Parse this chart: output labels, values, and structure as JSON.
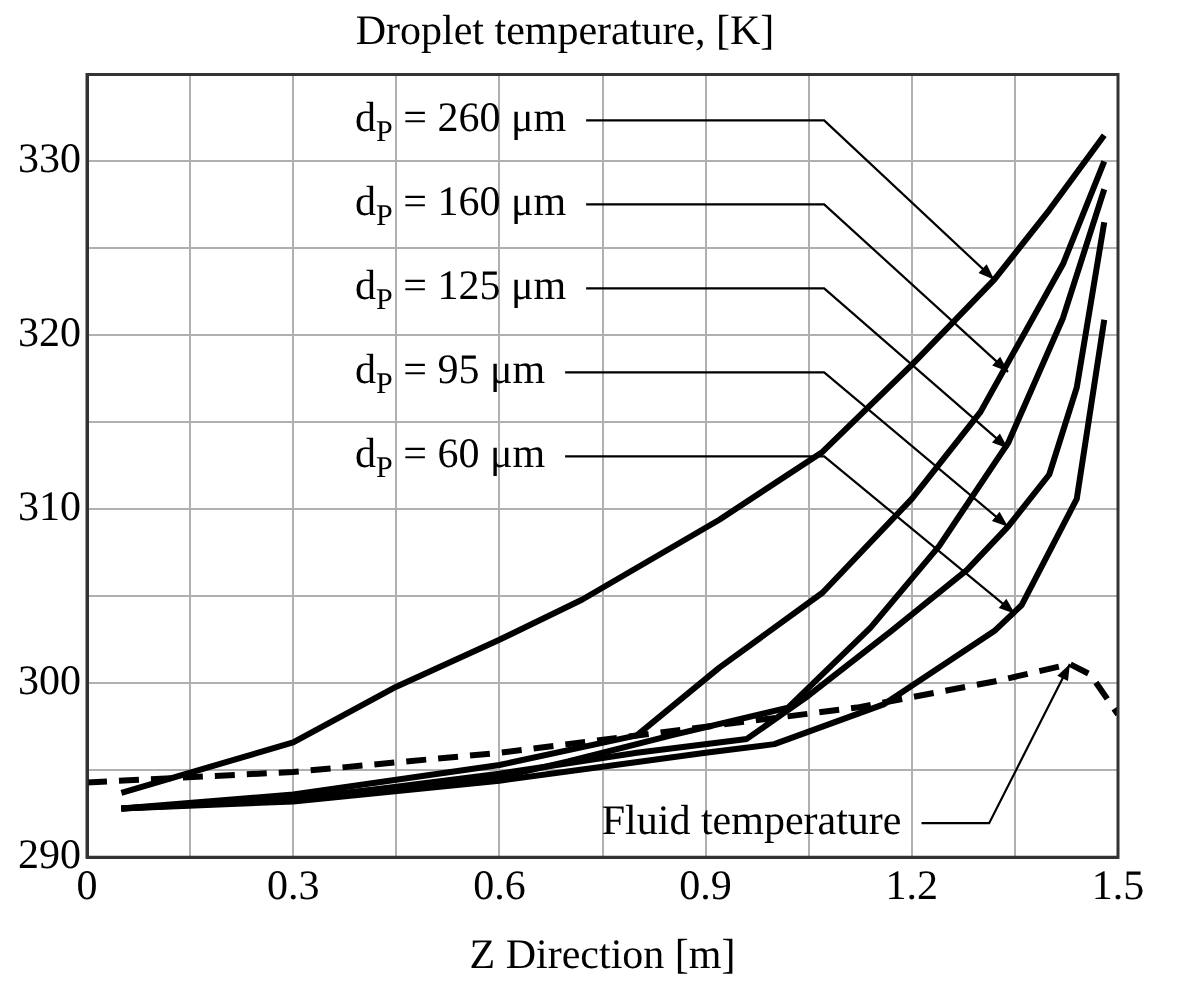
{
  "chart_data": {
    "type": "line",
    "title": "Droplet temperature, [K]",
    "xlabel": "Z Direction [m]",
    "xlim": [
      0,
      1.5
    ],
    "ylim": [
      290,
      335
    ],
    "xticks": [
      0,
      {
        "value": 0.15,
        "label": null
      },
      0.3,
      {
        "value": 0.45,
        "label": null
      },
      0.6,
      {
        "value": 0.75,
        "label": null
      },
      0.9,
      {
        "value": 1.05,
        "label": null
      },
      1.2,
      {
        "value": 1.35,
        "label": null
      },
      1.5
    ],
    "yticks": [
      290,
      {
        "value": 295,
        "label": null
      },
      300,
      {
        "value": 305,
        "label": null
      },
      310,
      {
        "value": 315,
        "label": null
      },
      320,
      {
        "value": 325,
        "label": null
      },
      330
    ],
    "grid": true,
    "legend": false,
    "marker": "none",
    "series": [
      {
        "color": "#000000",
        "line_style": "solid",
        "x": [
          0.05,
          0.3,
          0.45,
          0.6,
          0.72,
          0.92,
          1.07,
          1.2,
          1.32,
          1.4,
          1.48
        ],
        "values": [
          293.7,
          296.6,
          299.8,
          302.5,
          304.8,
          309.4,
          313.3,
          318.3,
          323.2,
          327.2,
          331.5
        ]
      },
      {
        "color": "#000000",
        "line_style": "solid",
        "x": [
          0.05,
          0.3,
          0.6,
          0.8,
          0.92,
          1.07,
          1.2,
          1.3,
          1.42,
          1.48
        ],
        "values": [
          292.8,
          293.6,
          295.3,
          297,
          300.9,
          305.2,
          310.6,
          315.6,
          324.1,
          330
        ]
      },
      {
        "color": "#000000",
        "line_style": "solid",
        "x": [
          0.05,
          0.3,
          0.6,
          0.7,
          0.85,
          1.02,
          1.14,
          1.24,
          1.34,
          1.42,
          1.48
        ],
        "values": [
          292.8,
          293.4,
          294.6,
          295.5,
          297,
          298.6,
          303.2,
          307.9,
          313.8,
          321,
          328.4
        ]
      },
      {
        "color": "#000000",
        "line_style": "solid",
        "x": [
          0.05,
          0.3,
          0.6,
          0.8,
          0.96,
          1.05,
          1.17,
          1.28,
          1.34,
          1.4,
          1.44,
          1.48
        ],
        "values": [
          292.8,
          293.3,
          294.8,
          296,
          296.8,
          299.3,
          303,
          306.5,
          309,
          312,
          317,
          326.5
        ]
      },
      {
        "color": "#000000",
        "line_style": "solid",
        "x": [
          0.05,
          0.3,
          0.6,
          0.9,
          1.0,
          1.16,
          1.32,
          1.36,
          1.44,
          1.48
        ],
        "values": [
          292.8,
          293.2,
          294.4,
          296,
          296.5,
          298.8,
          303,
          304.5,
          310.6,
          320.9
        ]
      },
      {
        "color": "#000000",
        "line_style": "dashed",
        "x": [
          0,
          0.3,
          0.6,
          0.8,
          1.12,
          1.32,
          1.43,
          1.46,
          1.5
        ],
        "values": [
          294.3,
          294.9,
          296,
          297,
          298.6,
          300.1,
          301.1,
          300.5,
          298.2
        ]
      }
    ],
    "annotations": [
      {
        "text": "d$_{P}$ = 260 μm",
        "x": 1.32,
        "y": 323.2
      },
      {
        "text": "d$_{P}$ = 160 μm",
        "x": 1.34,
        "y": 317.9
      },
      {
        "text": "d$_{P}$ = 125 μm",
        "x": 1.34,
        "y": 313.5
      },
      {
        "text": "d$_{P}$ = 95 μm",
        "x": 1.34,
        "y": 309
      },
      {
        "text": "d$_{P}$ = 60 μm",
        "x": 1.35,
        "y": 304
      },
      {
        "text": "Fluid temperature",
        "x": 1.43,
        "y": 301.1
      }
    ]
  }
}
